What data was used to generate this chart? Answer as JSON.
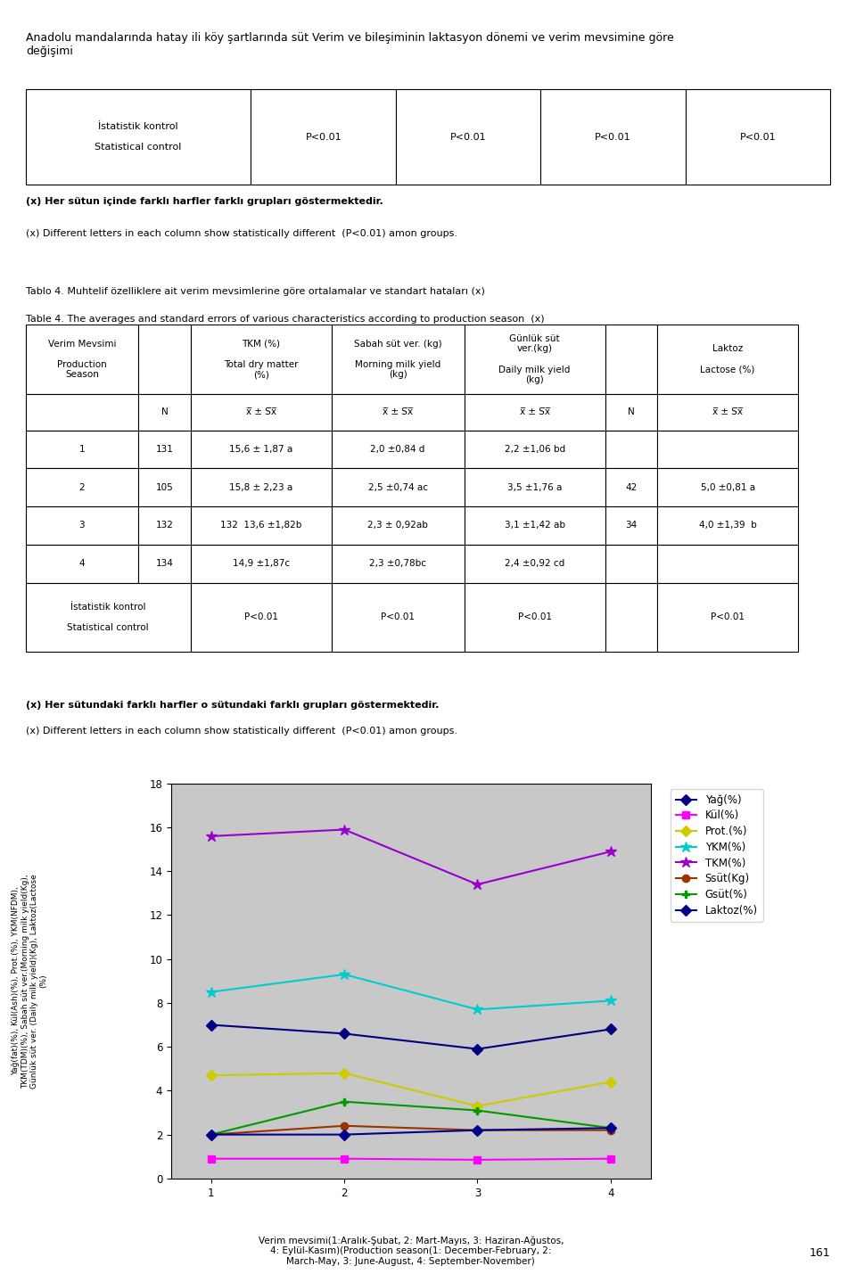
{
  "page_title": "Anadolu mandalarında hatay ili köy şartlarında süt Verim ve bileşiminin laktasyon dönemi ve verim mevsimine göre\ndeğişimi",
  "note1_bold": "(x) Her sütun içinde farklı harfler farklı grupları göstermektedir.",
  "note1_normal": "(x) Different letters in each column show statistically different  (P<0.01) amon groups.",
  "tablo4_title": "Tablo 4. Muhtelif özelliklere ait verim mevsimlerine göre ortalamalar ve standart hataları (x)",
  "table4_subtitle": "Table 4. The averages and standard errors of various characteristics according to production season  (x)",
  "note2_bold": "(x) Her sütundaki farklı harfler o sütundaki farklı grupları göstermektedir.",
  "note2_normal": "(x) Different letters in each column show statistically different  (P<0.01) amon groups.",
  "ylabel_text": "Yağ(fat)(%), Kül(Ash)(%), Prot.(%), YKM(NFDM),\nTKM(TDM)(%), Sabah süt ver.(Morning milk yield(Kg),\nGünlük süt ver. (Daily milk yield)(Kg), Laktoz(Lactose\n(%)",
  "xlabel_text": "Verim mevsimi(1:Aralık-Şubat, 2: Mart-Mayıs, 3: Haziran-Ağustos,\n4: Eylül-Kasım)(Production season(1: December-February, 2:\nMarch-May, 3: June-August, 4: September-November)",
  "x_values": [
    1,
    2,
    3,
    4
  ],
  "line_Yag": [
    7.0,
    6.6,
    5.9,
    6.8
  ],
  "line_Kul": [
    0.9,
    0.9,
    0.85,
    0.9
  ],
  "line_Prot": [
    4.7,
    4.8,
    3.3,
    4.4
  ],
  "line_YKM": [
    8.5,
    9.3,
    7.7,
    8.1
  ],
  "line_TKM": [
    15.6,
    15.9,
    13.4,
    14.9
  ],
  "line_Ssut": [
    2.0,
    2.4,
    2.2,
    2.2
  ],
  "line_Gsut": [
    2.0,
    3.5,
    3.1,
    2.3
  ],
  "line_Laktoz": [
    2.0,
    2.0,
    2.2,
    2.3
  ],
  "color_Yag": "#000080",
  "color_Kul": "#FF00FF",
  "color_Prot": "#CCCC00",
  "color_YKM": "#00CCCC",
  "color_TKM": "#9900CC",
  "color_Ssut": "#993300",
  "color_Gsut": "#009900",
  "color_Laktoz": "#00008B",
  "ylim": [
    0,
    18
  ],
  "yticks": [
    0,
    2,
    4,
    6,
    8,
    10,
    12,
    14,
    16,
    18
  ],
  "xticks": [
    1,
    2,
    3,
    4
  ],
  "plot_bg_color": "#C8C8C8",
  "page_number": "161"
}
